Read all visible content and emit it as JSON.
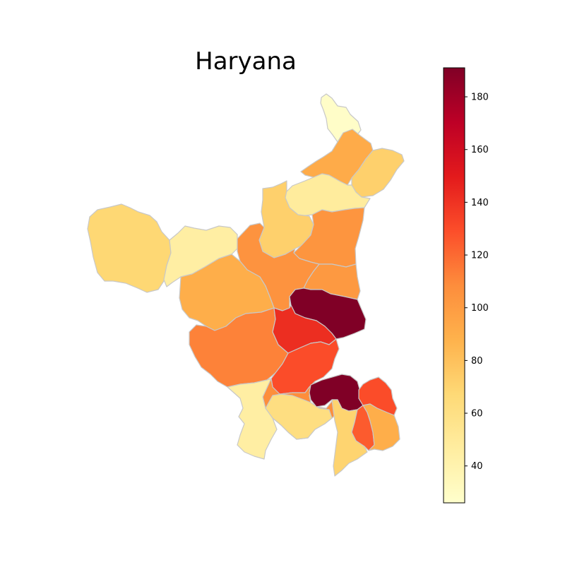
{
  "title": "Haryana",
  "colorbar": {
    "min": 26,
    "max": 191,
    "ticks": [
      40,
      60,
      80,
      100,
      120,
      140,
      160,
      180
    ],
    "colormap": [
      "#ffffcc",
      "#ffeda0",
      "#fed976",
      "#feb24c",
      "#fd8d3c",
      "#fc4e2a",
      "#e31a1c",
      "#bd0026",
      "#800026"
    ]
  },
  "chart_data": {
    "type": "choropleth",
    "title": "Haryana",
    "value_range": [
      26,
      191
    ],
    "colorbar_ticks": [
      40,
      60,
      80,
      100,
      120,
      140,
      160,
      180
    ],
    "regions": [
      {
        "id": "d1",
        "value": 28
      },
      {
        "id": "d2",
        "value": 92
      },
      {
        "id": "d3",
        "value": 72
      },
      {
        "id": "d4",
        "value": 48
      },
      {
        "id": "d5",
        "value": 72
      },
      {
        "id": "d6",
        "value": 104
      },
      {
        "id": "d7",
        "value": 68
      },
      {
        "id": "d8",
        "value": 45
      },
      {
        "id": "d9",
        "value": 105
      },
      {
        "id": "d10",
        "value": 90
      },
      {
        "id": "d11",
        "value": 102
      },
      {
        "id": "d12",
        "value": 112
      },
      {
        "id": "d13",
        "value": 191
      },
      {
        "id": "d14",
        "value": 142
      },
      {
        "id": "d15",
        "value": 130
      },
      {
        "id": "d16",
        "value": 108
      },
      {
        "id": "d17",
        "value": 45
      },
      {
        "id": "d18",
        "value": 62
      },
      {
        "id": "d19",
        "value": 191
      },
      {
        "id": "d20",
        "value": 130
      },
      {
        "id": "d21",
        "value": 70
      },
      {
        "id": "d22",
        "value": 125
      },
      {
        "id": "d23",
        "value": 90
      }
    ]
  }
}
